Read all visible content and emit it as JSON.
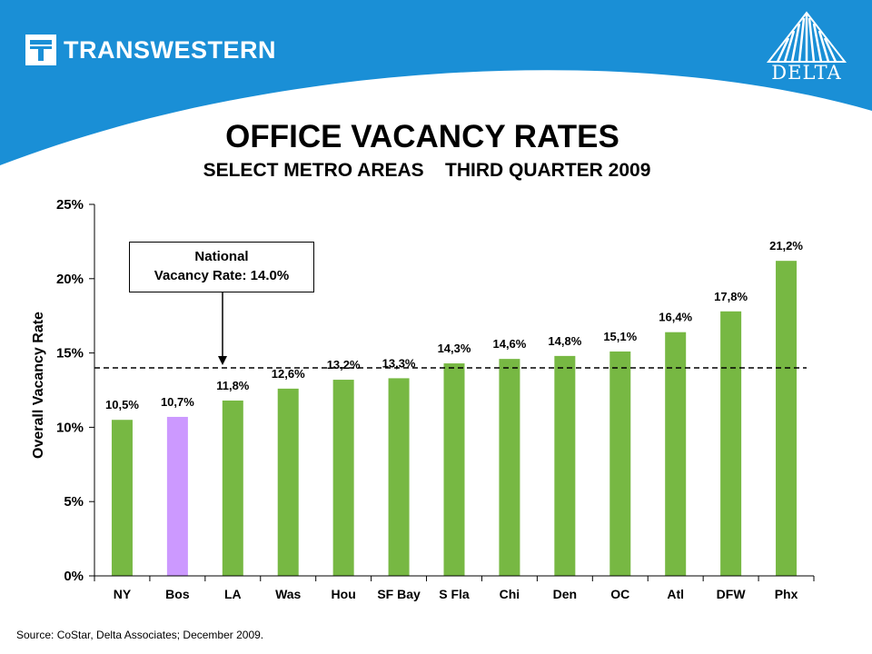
{
  "branding": {
    "left_logo_text": "TRANSWESTERN",
    "right_logo_text": "DELTA",
    "band_color": "#1a8fd6",
    "accent_color": "#ffffff"
  },
  "title": "OFFICE VACANCY RATES",
  "subtitle": "SELECT METRO AREAS    THIRD QUARTER 2009",
  "callout": {
    "line1": "National",
    "line2": "Vacancy Rate: 14.0%"
  },
  "source": "Source: CoStar, Delta Associates; December 2009.",
  "chart_data": {
    "type": "bar",
    "title": "OFFICE VACANCY RATES",
    "subtitle": "SELECT METRO AREAS    THIRD QUARTER 2009",
    "xlabel": "",
    "ylabel": "Overall Vacancy Rate",
    "ylim": [
      0,
      25
    ],
    "yticks": [
      0,
      5,
      10,
      15,
      20,
      25
    ],
    "ytick_labels": [
      "0%",
      "5%",
      "10%",
      "15%",
      "20%",
      "25%"
    ],
    "categories": [
      "NY",
      "Bos",
      "LA",
      "Was",
      "Hou",
      "SF Bay",
      "S Fla",
      "Chi",
      "Den",
      "OC",
      "Atl",
      "DFW",
      "Phx"
    ],
    "values": [
      10.5,
      10.7,
      11.8,
      12.6,
      13.2,
      13.3,
      14.3,
      14.6,
      14.8,
      15.1,
      16.4,
      17.8,
      21.2
    ],
    "value_labels": [
      "10,5%",
      "10,7%",
      "11,8%",
      "12,6%",
      "13,2%",
      "13,3%",
      "14,3%",
      "14,6%",
      "14,8%",
      "15,1%",
      "16,4%",
      "17,8%",
      "21,2%"
    ],
    "highlight_category": "Bos",
    "bar_color": "#77b843",
    "highlight_color": "#cc99ff",
    "reference_line": {
      "value": 14.0,
      "style": "dashed"
    },
    "annotation_category": "LA",
    "grid": false,
    "legend": "none"
  }
}
